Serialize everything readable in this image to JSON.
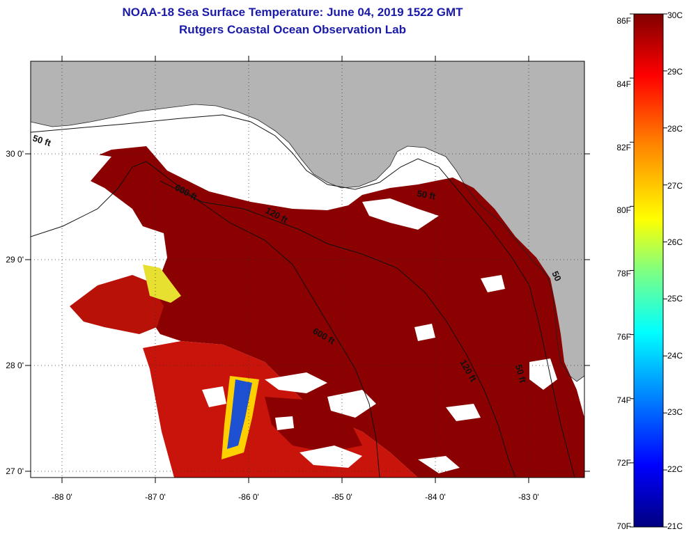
{
  "title": {
    "line1": "NOAA-18 Sea Surface Temperature:  June 04, 2019 1522 GMT",
    "line2": "Rutgers Coastal Ocean Observation Lab"
  },
  "map": {
    "lon_ticks": [
      "-88 0'",
      "-87 0'",
      "-86 0'",
      "-85 0'",
      "-84 0'",
      "-83 0'"
    ],
    "lat_ticks": [
      "30 0'",
      "29 0'",
      "28 0'",
      "27 0'"
    ],
    "contour_labels": [
      "50 ft",
      "600 ft",
      "120 ft",
      "50 ft",
      "600 ft",
      "120 ft",
      "50 ft",
      "50"
    ],
    "colors": {
      "land": "#b4b4b4",
      "cloud": "#ffffff",
      "sst_dark": "#8b0000",
      "sst_red": "#c8140a",
      "sst_cold": "#1e50d2"
    }
  },
  "colorbar": {
    "fahrenheit": [
      "86F",
      "84F",
      "82F",
      "80F",
      "78F",
      "76F",
      "74F",
      "72F",
      "70F"
    ],
    "celsius": [
      "30C",
      "29C",
      "28C",
      "27C",
      "26C",
      "25C",
      "24C",
      "23C",
      "22C",
      "21C"
    ],
    "gradient": [
      "#800000",
      "#ff0000",
      "#ff8000",
      "#ffff00",
      "#80ff80",
      "#00ffff",
      "#0080ff",
      "#0000ff",
      "#000080"
    ]
  }
}
